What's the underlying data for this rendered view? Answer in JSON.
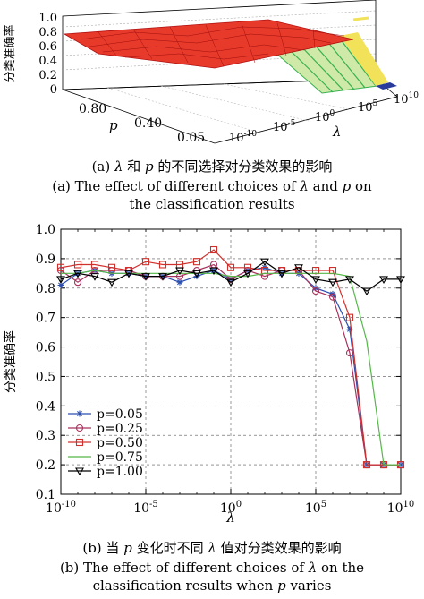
{
  "chart_a": {
    "type": "surface3d",
    "zlabel": "分类准确率",
    "xlabel": "λ",
    "ylabel": "p",
    "z_ticks": [
      "0",
      "0.2",
      "0.4",
      "0.6",
      "0.8",
      "1.0"
    ],
    "p_ticks": [
      "0.80",
      "0.40",
      "0.05"
    ],
    "lambda_ticks": [
      {
        "base": "10",
        "exp": "-10"
      },
      {
        "base": "10",
        "exp": "-5"
      },
      {
        "base": "10",
        "exp": "0"
      },
      {
        "base": "10",
        "exp": "5"
      },
      {
        "base": "10",
        "exp": "10"
      }
    ],
    "colors": {
      "surface": "#e83a2a",
      "mesh": "#b01010",
      "yellow": "#f2e25a",
      "green": "#36b14d",
      "blue": "#2a3a9a"
    }
  },
  "caption_a": {
    "zh_prefix": "(a) ",
    "zh_lambda": "λ",
    "zh_mid": " 和 ",
    "zh_p": "p",
    "zh_suffix": " 的不同选择对分类效果的影响",
    "en_line1_pre": "(a) The effect of different choices of ",
    "en_lambda": "λ",
    "en_mid": " and ",
    "en_p": "p",
    "en_line1_post": " on",
    "en_line2": "the classification results"
  },
  "chart_data": {
    "type": "line",
    "x_scale": "log",
    "xlim": [
      1e-10,
      10000000000.0
    ],
    "ylim": [
      0.1,
      1.0
    ],
    "xlabel": "λ",
    "ylabel": "分类准确率",
    "x_tick_exponents": [
      "-10",
      "-5",
      "0",
      "5",
      "10"
    ],
    "x_tick_base": "10",
    "y_ticks": [
      "0.1",
      "0.2",
      "0.3",
      "0.4",
      "0.5",
      "0.6",
      "0.7",
      "0.8",
      "0.9",
      "1.0"
    ],
    "grid": "dashed",
    "legend_position": "lower-left",
    "x": [
      1e-10,
      1e-09,
      1e-08,
      1e-07,
      1e-06,
      1e-05,
      0.0001,
      0.001,
      0.01,
      0.1,
      1,
      10.0,
      100.0,
      1000.0,
      10000.0,
      100000.0,
      1000000.0,
      10000000.0,
      100000000.0,
      1000000000.0,
      10000000000.0
    ],
    "series": [
      {
        "name": "p=0.05",
        "color": "#2b4fb0",
        "marker": "star",
        "values": [
          0.81,
          0.85,
          0.86,
          0.85,
          0.85,
          0.84,
          0.84,
          0.82,
          0.84,
          0.86,
          0.83,
          0.86,
          0.87,
          0.85,
          0.85,
          0.8,
          0.78,
          0.66,
          0.2,
          0.2,
          0.2
        ]
      },
      {
        "name": "p=0.25",
        "color": "#a8325c",
        "marker": "circle",
        "values": [
          0.86,
          0.82,
          0.86,
          0.86,
          0.86,
          0.84,
          0.84,
          0.84,
          0.86,
          0.88,
          0.83,
          0.86,
          0.84,
          0.86,
          0.86,
          0.79,
          0.77,
          0.58,
          0.2,
          0.2,
          0.2
        ]
      },
      {
        "name": "p=0.50",
        "color": "#d0302c",
        "marker": "square",
        "values": [
          0.87,
          0.88,
          0.88,
          0.87,
          0.86,
          0.89,
          0.88,
          0.88,
          0.89,
          0.93,
          0.87,
          0.87,
          0.86,
          0.86,
          0.86,
          0.86,
          0.86,
          0.7,
          0.2,
          0.2,
          0.2
        ]
      },
      {
        "name": "p=0.75",
        "color": "#55b848",
        "marker": "none",
        "values": [
          0.85,
          0.85,
          0.86,
          0.85,
          0.85,
          0.85,
          0.85,
          0.85,
          0.85,
          0.85,
          0.84,
          0.84,
          0.85,
          0.85,
          0.85,
          0.85,
          0.85,
          0.84,
          0.62,
          0.2,
          0.2
        ]
      },
      {
        "name": "p=1.00",
        "color": "#000000",
        "marker": "triangle-down",
        "values": [
          0.83,
          0.85,
          0.84,
          0.82,
          0.85,
          0.84,
          0.84,
          0.86,
          0.85,
          0.86,
          0.82,
          0.85,
          0.89,
          0.85,
          0.87,
          0.83,
          0.82,
          0.83,
          0.79,
          0.83,
          0.83
        ]
      }
    ]
  },
  "caption_b": {
    "zh_prefix": "(b) 当 ",
    "zh_p": "p",
    "zh_mid": " 变化时不同 ",
    "zh_lambda": "λ",
    "zh_suffix": " 值对分类效果的影响",
    "en_line1_pre": "(b) The effect of different choices of ",
    "en_lambda": "λ",
    "en_line1_post": " on the",
    "en_line2_pre": "classification results when ",
    "en_p": "p",
    "en_line2_post": " varies"
  }
}
